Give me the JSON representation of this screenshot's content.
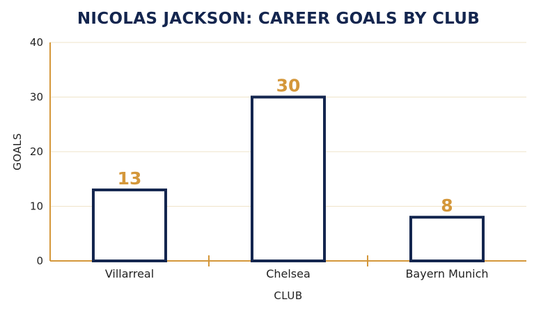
{
  "chart_data": {
    "type": "bar",
    "title": "NICOLAS JACKSON: CAREER GOALS BY CLUB",
    "xlabel": "CLUB",
    "ylabel": "GOALS",
    "categories": [
      "Villarreal",
      "Chelsea",
      "Bayern Munich"
    ],
    "values": [
      13,
      30,
      8
    ],
    "ylim": [
      0,
      40
    ],
    "yticks": [
      0,
      10,
      20,
      30,
      40
    ],
    "grid": true,
    "legend": "none",
    "colors": {
      "bar_stroke": "#14264f",
      "bar_fill": "#ffffff",
      "data_label": "#d4973a",
      "axis": "#d4973a",
      "grid": "#efe3c8",
      "title": "#14264f"
    }
  }
}
